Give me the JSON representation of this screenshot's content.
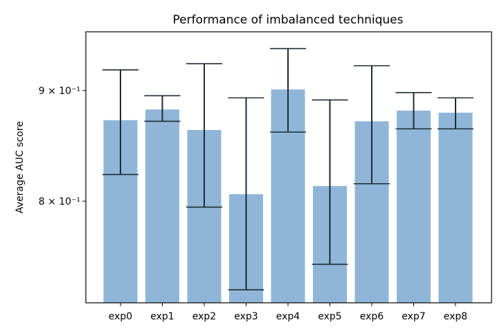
{
  "chart_data": {
    "type": "bar",
    "title": "Performance of imbalanced techniques",
    "xlabel": "",
    "ylabel": "Average AUC score",
    "yscale": "log",
    "ylim": [
      0.718,
      0.958
    ],
    "categories": [
      "exp0",
      "exp1",
      "exp2",
      "exp3",
      "exp4",
      "exp5",
      "exp6",
      "exp7",
      "exp8"
    ],
    "values": [
      0.872,
      0.882,
      0.863,
      0.806,
      0.901,
      0.813,
      0.871,
      0.881,
      0.879
    ],
    "error_low": [
      0.823,
      0.871,
      0.795,
      0.728,
      0.861,
      0.748,
      0.815,
      0.864,
      0.864
    ],
    "error_high": [
      0.92,
      0.895,
      0.926,
      0.893,
      0.941,
      0.891,
      0.924,
      0.898,
      0.893
    ],
    "yticks": [
      {
        "value": 0.9,
        "label": "9 × 10⁻¹"
      },
      {
        "value": 0.8,
        "label": "8 × 10⁻¹"
      }
    ],
    "bar_color": "#8fb6d8",
    "error_color": "#1f2a30",
    "grid": false,
    "legend": "none"
  }
}
